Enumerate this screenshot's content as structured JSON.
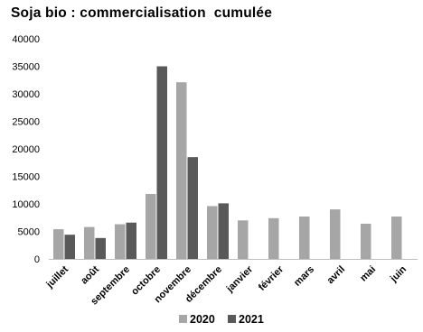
{
  "chart_data": {
    "type": "bar",
    "title": "Soja bio : commercialisation  cumulée",
    "xlabel": "",
    "ylabel": "",
    "ylim": [
      0,
      40000
    ],
    "yticks": [
      0,
      5000,
      10000,
      15000,
      20000,
      25000,
      30000,
      35000,
      40000
    ],
    "grid": false,
    "legend_position": "bottom",
    "categories": [
      "juillet",
      "août",
      "septembre",
      "octobre",
      "novembre",
      "décembre",
      "janvier",
      "février",
      "mars",
      "avril",
      "mai",
      "juin"
    ],
    "series": [
      {
        "name": "2020",
        "color": "#a6a6a6",
        "values": [
          5400,
          5800,
          6300,
          11800,
          32100,
          9600,
          7000,
          7400,
          7700,
          9000,
          6400,
          7700
        ]
      },
      {
        "name": "2021",
        "color": "#595959",
        "values": [
          4400,
          3800,
          6600,
          35000,
          18500,
          10100,
          null,
          null,
          null,
          null,
          null,
          null
        ]
      }
    ]
  }
}
